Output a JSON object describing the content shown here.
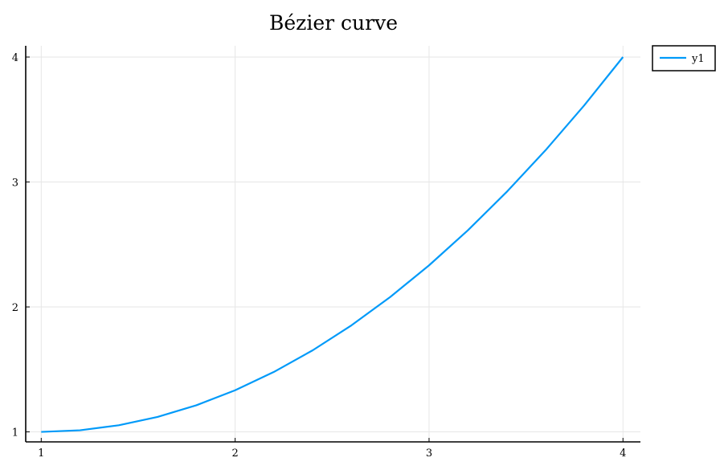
{
  "chart_data": {
    "type": "line",
    "title": "Bézier curve",
    "xlabel": "",
    "ylabel": "",
    "xlim": [
      0.92,
      4.09
    ],
    "ylim": [
      0.92,
      4.09
    ],
    "xticks": [
      1,
      2,
      3,
      4
    ],
    "yticks": [
      1,
      2,
      3,
      4
    ],
    "grid": true,
    "legend": "top-right outside",
    "series": [
      {
        "name": "y1",
        "color": "#009af9",
        "x": [
          1.0,
          1.2,
          1.4,
          1.6,
          1.8,
          2.0,
          2.2,
          2.4,
          2.6,
          2.8,
          3.0,
          3.2,
          3.4,
          3.6,
          3.8,
          4.0
        ],
        "y": [
          1.0,
          1.013,
          1.053,
          1.12,
          1.213,
          1.333,
          1.48,
          1.653,
          1.853,
          2.08,
          2.333,
          2.613,
          2.92,
          3.253,
          3.613,
          4.0
        ]
      }
    ]
  }
}
